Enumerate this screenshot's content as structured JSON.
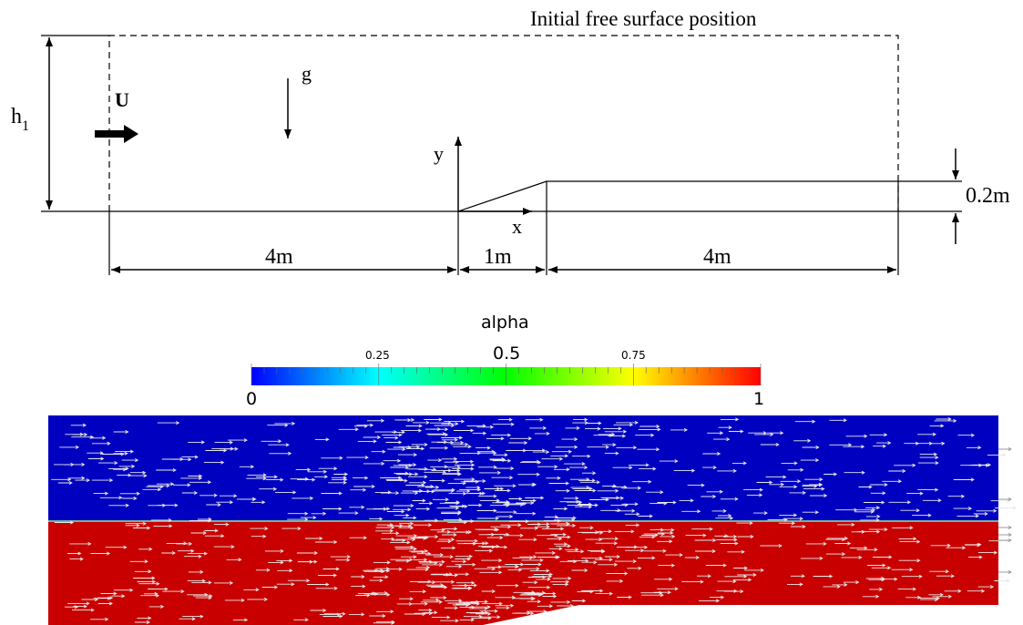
{
  "schematic": {
    "free_surface_label": "Initial free surface position",
    "depth_label_main": "h",
    "depth_label_sub": "1",
    "velocity_label": "U",
    "gravity_label": "g",
    "y_axis_label": "y",
    "x_axis_label": "x",
    "step_height_label": "0.2m",
    "upstream_length_label": "4m",
    "ramp_length_label": "1m",
    "downstream_length_label": "4m"
  },
  "colorbar": {
    "title": "alpha",
    "min_label": "0",
    "max_label": "1",
    "tick_025": "0.25",
    "tick_05": "0.5",
    "tick_075": "0.75",
    "colors": [
      "#0000ff",
      "#00ffff",
      "#00ff00",
      "#ffff00",
      "#ff0000"
    ]
  },
  "simulation": {
    "air_color": "#0000c0",
    "water_color": "#c80000",
    "vector_color": "#e8e8e8",
    "interface_color": "#6fb6a0"
  }
}
